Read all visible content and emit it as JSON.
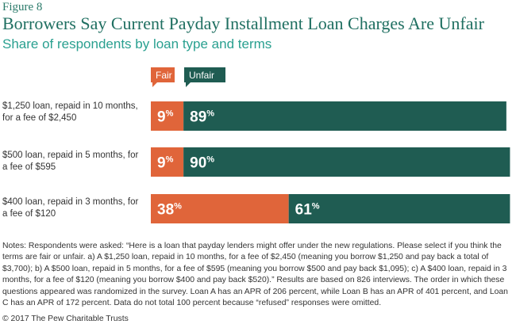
{
  "figure_label": "Figure 8",
  "title": "Borrowers Say Current Payday Installment Loan Charges Are Unfair",
  "subtitle": "Share of respondents by loan type and terms",
  "colors": {
    "fair": "#e0653a",
    "unfair": "#1f5c52"
  },
  "chart_data": {
    "type": "bar",
    "orientation": "horizontal",
    "stacked": true,
    "unit": "%",
    "categories": [
      "$1,250 loan, repaid in 10 months, for a fee of $2,450",
      "$500 loan, repaid in 5 months, for a fee of $595",
      "$400 loan, repaid in 3 months, for a fee of $120"
    ],
    "series": [
      {
        "name": "Fair",
        "values": [
          9,
          9,
          38
        ]
      },
      {
        "name": "Unfair",
        "values": [
          89,
          90,
          61
        ]
      }
    ],
    "xlim": [
      0,
      100
    ],
    "grid": false,
    "legend": "top-left"
  },
  "notes": "Notes: Respondents were asked: “Here is a loan that payday lenders might offer under the new regulations. Please select if you think the terms are fair or unfair. a) A $1,250 loan, repaid in 10 months, for a fee of $2,450 (meaning you borrow $1,250 and pay back a total of $3,700); b) A $500 loan, repaid in 5 months, for a fee of $595 (meaning you borrow $500 and pay back $1,095); c) A $400 loan, repaid in 3 months, for a fee of $120 (meaning you borrow $400 and pay back $520).” Results are based on 826 interviews. The order in which these questions appeared was randomized in the survey. Loan A has an APR of 206 percent, while Loan B has an APR of 401 percent, and Loan C has an APR of 172 percent. Data do not total 100 percent because “refused” responses were omitted.",
  "credit": "© 2017 The Pew Charitable Trusts"
}
